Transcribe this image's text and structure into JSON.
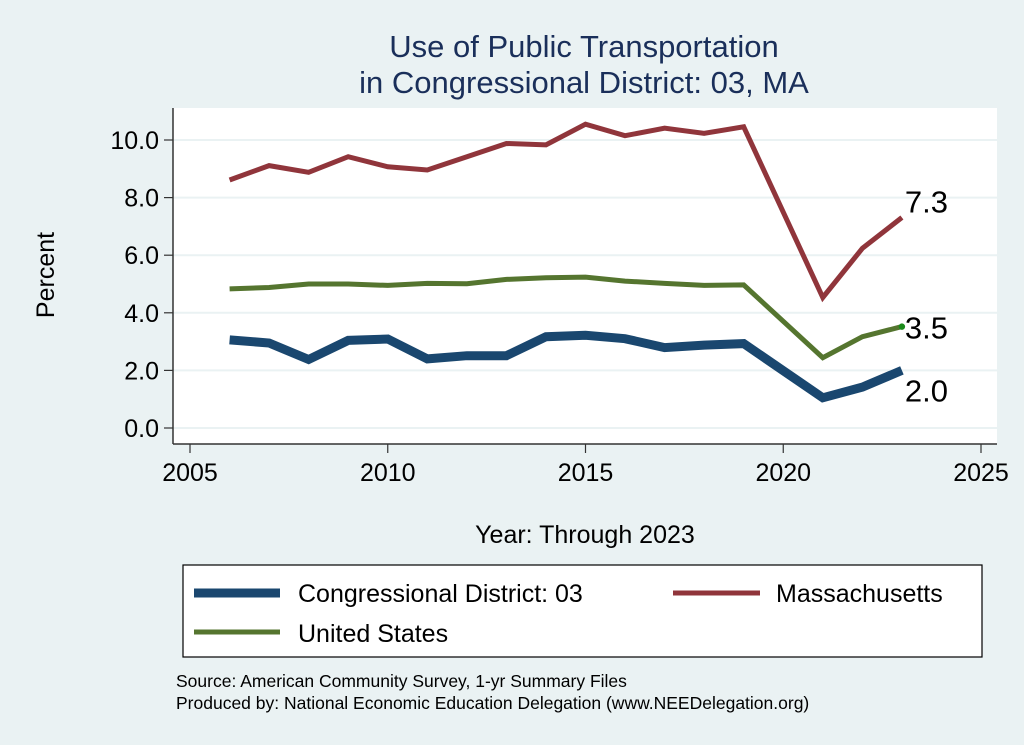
{
  "chart_data": {
    "type": "line",
    "title": [
      "Use of Public Transportation",
      "in Congressional District: 03, MA"
    ],
    "xlabel": "Year: Through 2023",
    "ylabel": "Percent",
    "xlim": [
      2005,
      2025
    ],
    "ylim": [
      0,
      10
    ],
    "xticks": [
      2005,
      2010,
      2015,
      2020,
      2025
    ],
    "yticks": [
      0,
      2,
      4,
      6,
      8,
      10
    ],
    "ytick_labels": [
      "0.0",
      "2.0",
      "4.0",
      "6.0",
      "8.0",
      "10.0"
    ],
    "grid": true,
    "x": [
      2006,
      2007,
      2008,
      2009,
      2010,
      2011,
      2012,
      2013,
      2014,
      2015,
      2016,
      2017,
      2018,
      2019,
      2021,
      2022,
      2023
    ],
    "series": [
      {
        "name": "Congressional District: 03",
        "color": "#1a476f",
        "values": [
          3.06,
          2.95,
          2.38,
          3.04,
          3.09,
          2.4,
          2.51,
          2.51,
          3.17,
          3.22,
          3.1,
          2.79,
          2.88,
          2.93,
          1.05,
          1.42,
          2.0
        ],
        "end_label": "2.0"
      },
      {
        "name": "Massachusetts",
        "color": "#90353b",
        "values": [
          8.61,
          9.11,
          8.88,
          9.42,
          9.07,
          8.96,
          9.42,
          9.88,
          9.83,
          10.55,
          10.15,
          10.41,
          10.23,
          10.46,
          4.53,
          6.24,
          7.31
        ],
        "end_label": "7.3"
      },
      {
        "name": "United States",
        "color": "#55752f",
        "values": [
          4.83,
          4.88,
          5.0,
          5.0,
          4.95,
          5.02,
          5.01,
          5.16,
          5.22,
          5.24,
          5.1,
          5.02,
          4.95,
          4.97,
          2.44,
          3.17,
          3.52
        ],
        "end_label": "3.5"
      }
    ],
    "legend": {
      "position": "bottom",
      "entries": [
        "Congressional District: 03",
        "Massachusetts",
        "United States"
      ]
    },
    "notes": [
      "Source: American Community Survey, 1-yr Summary Files",
      "Produced by: National Economic Education Delegation (www.NEEDelegation.org)"
    ]
  },
  "colors": {
    "background": "#eaf2f3",
    "plot_background": "#ffffff",
    "gridline": "#eaf2f3",
    "title": "#1a2f5a",
    "endpoint_dot": "#1a8a1a"
  }
}
